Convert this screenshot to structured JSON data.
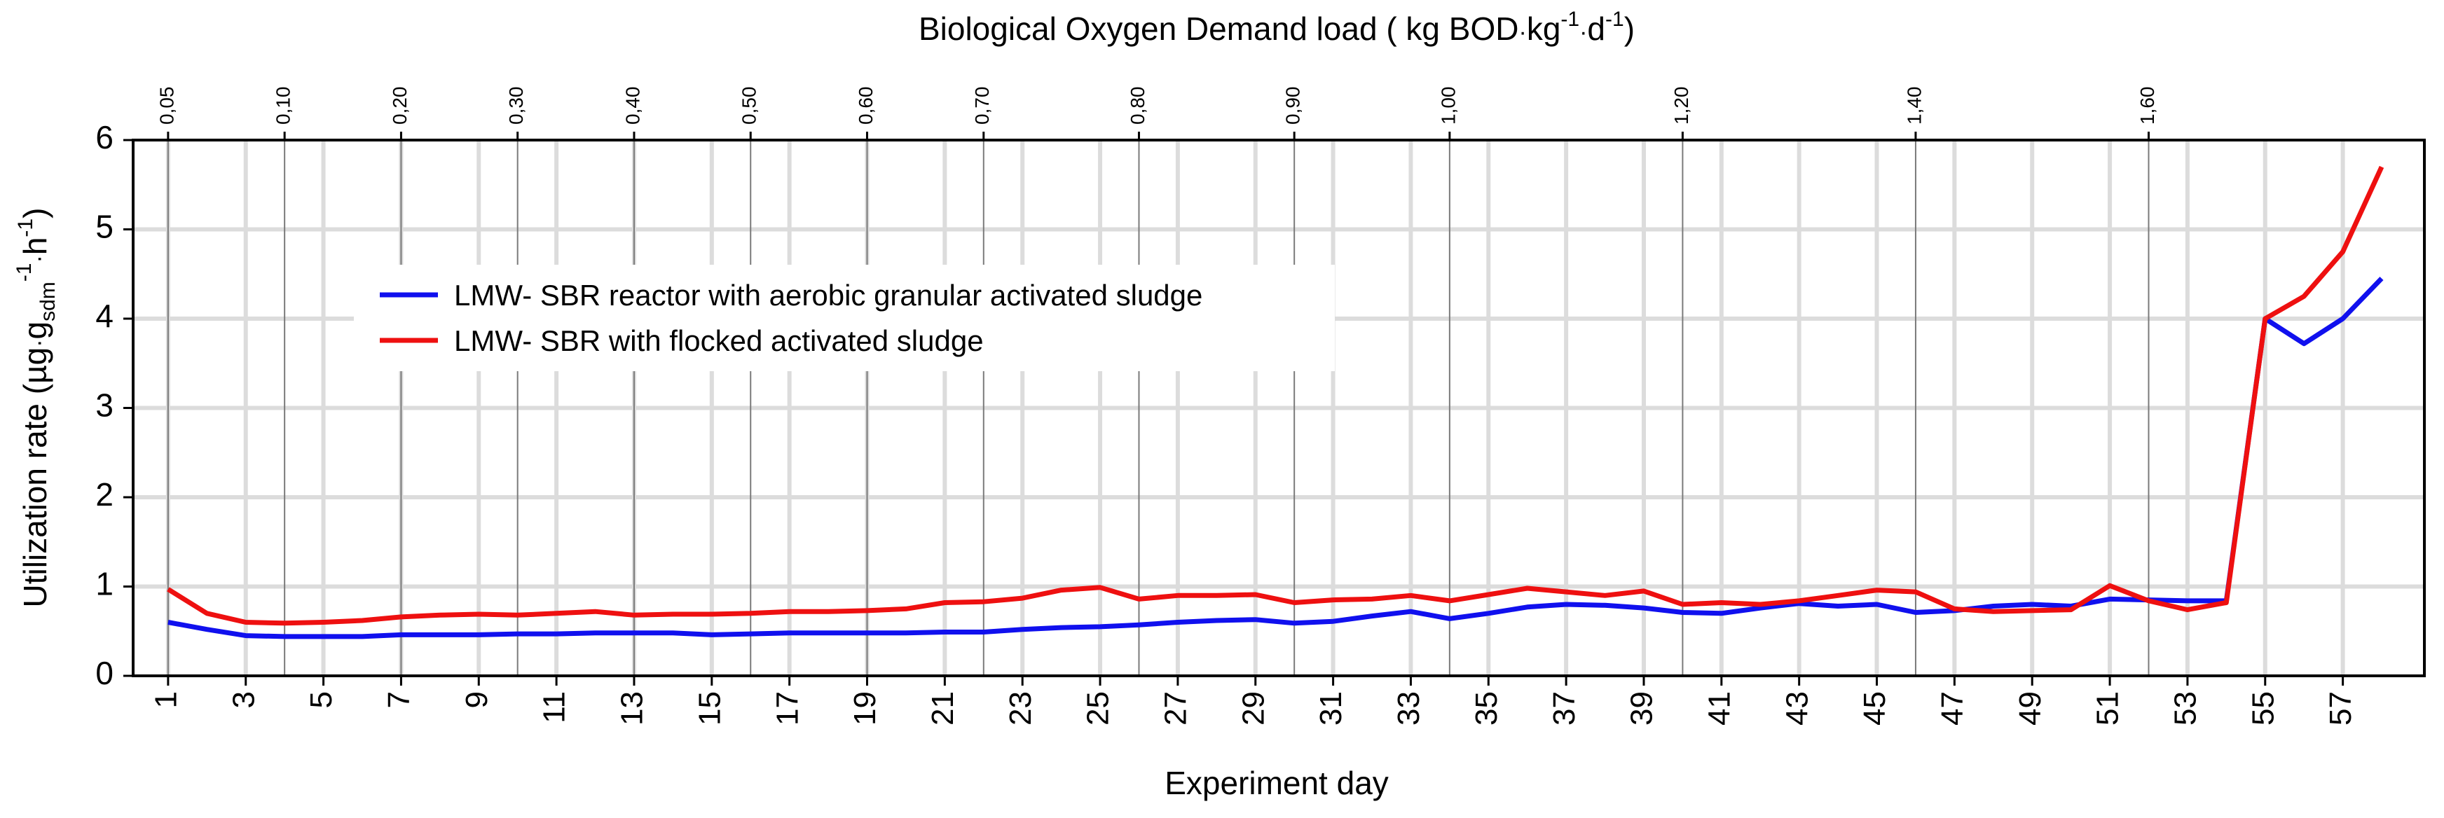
{
  "chart_data": {
    "type": "line",
    "title": "Biological Oxygen Demand load",
    "top_axis": {
      "label_prefix": "Biological Oxygen Demand load ( kg BOD",
      "label_mid": "kg",
      "label_exp1": "-1",
      "label_d": "d",
      "label_exp2": "-1",
      "label_suffix": ")",
      "ticks": [
        {
          "day": 1,
          "label": "0,05"
        },
        {
          "day": 4,
          "label": "0,10"
        },
        {
          "day": 7,
          "label": "0,20"
        },
        {
          "day": 10,
          "label": "0,30"
        },
        {
          "day": 13,
          "label": "0,40"
        },
        {
          "day": 16,
          "label": "0,50"
        },
        {
          "day": 19,
          "label": "0,60"
        },
        {
          "day": 22,
          "label": "0,70"
        },
        {
          "day": 26,
          "label": "0,80"
        },
        {
          "day": 30,
          "label": "0,90"
        },
        {
          "day": 34,
          "label": "1,00"
        },
        {
          "day": 40,
          "label": "1,20"
        },
        {
          "day": 46,
          "label": "1,40"
        },
        {
          "day": 52,
          "label": "1,60"
        }
      ]
    },
    "xlabel": "Experiment day",
    "ylabel": {
      "main": "Utilization rate (",
      "mu": "µg",
      "g": "g",
      "sub": "sdm",
      "sup1": "-1",
      "h": "h",
      "sup2": "-1",
      "close": ")"
    },
    "xlim": [
      0.1,
      59.1
    ],
    "ylim": [
      0,
      6
    ],
    "x_ticks": [
      1,
      3,
      5,
      7,
      9,
      11,
      13,
      15,
      17,
      19,
      21,
      23,
      25,
      27,
      29,
      31,
      33,
      35,
      37,
      39,
      41,
      43,
      45,
      47,
      49,
      51,
      53,
      55,
      57
    ],
    "y_ticks": [
      0,
      1,
      2,
      3,
      4,
      5,
      6
    ],
    "x": [
      1,
      2,
      3,
      4,
      5,
      6,
      7,
      8,
      9,
      10,
      11,
      12,
      13,
      14,
      15,
      16,
      17,
      18,
      19,
      20,
      21,
      22,
      23,
      24,
      25,
      26,
      27,
      28,
      29,
      30,
      31,
      32,
      33,
      34,
      35,
      36,
      37,
      38,
      39,
      40,
      41,
      42,
      43,
      44,
      45,
      46,
      47,
      48,
      49,
      50,
      51,
      52,
      53,
      54,
      55,
      56,
      57,
      58
    ],
    "series": [
      {
        "name": "LMW- SBR reactor with aerobic granular activated sludge",
        "color": "#1010ee",
        "values": [
          0.6,
          0.52,
          0.45,
          0.44,
          0.44,
          0.44,
          0.46,
          0.46,
          0.46,
          0.47,
          0.47,
          0.48,
          0.48,
          0.48,
          0.46,
          0.47,
          0.48,
          0.48,
          0.48,
          0.48,
          0.49,
          0.49,
          0.52,
          0.54,
          0.55,
          0.57,
          0.6,
          0.62,
          0.63,
          0.59,
          0.61,
          0.67,
          0.72,
          0.64,
          0.7,
          0.77,
          0.8,
          0.79,
          0.76,
          0.71,
          0.7,
          0.76,
          0.81,
          0.78,
          0.8,
          0.71,
          0.73,
          0.78,
          0.8,
          0.78,
          0.86,
          0.85,
          0.84,
          0.84,
          4.0,
          3.72,
          4.0,
          4.45
        ]
      },
      {
        "name": "LMW- SBR with flocked activated sludge",
        "color": "#ee1010",
        "values": [
          0.97,
          0.7,
          0.6,
          0.59,
          0.6,
          0.62,
          0.66,
          0.68,
          0.69,
          0.68,
          0.7,
          0.72,
          0.68,
          0.69,
          0.69,
          0.7,
          0.72,
          0.72,
          0.73,
          0.75,
          0.82,
          0.83,
          0.87,
          0.96,
          0.99,
          0.86,
          0.9,
          0.9,
          0.91,
          0.82,
          0.85,
          0.86,
          0.9,
          0.84,
          0.91,
          0.98,
          0.94,
          0.9,
          0.95,
          0.8,
          0.82,
          0.8,
          0.84,
          0.9,
          0.96,
          0.94,
          0.75,
          0.72,
          0.73,
          0.74,
          1.01,
          0.84,
          0.74,
          0.82,
          4.0,
          4.25,
          4.75,
          5.7
        ]
      }
    ],
    "legend_position": "upper-left",
    "grid": true
  }
}
